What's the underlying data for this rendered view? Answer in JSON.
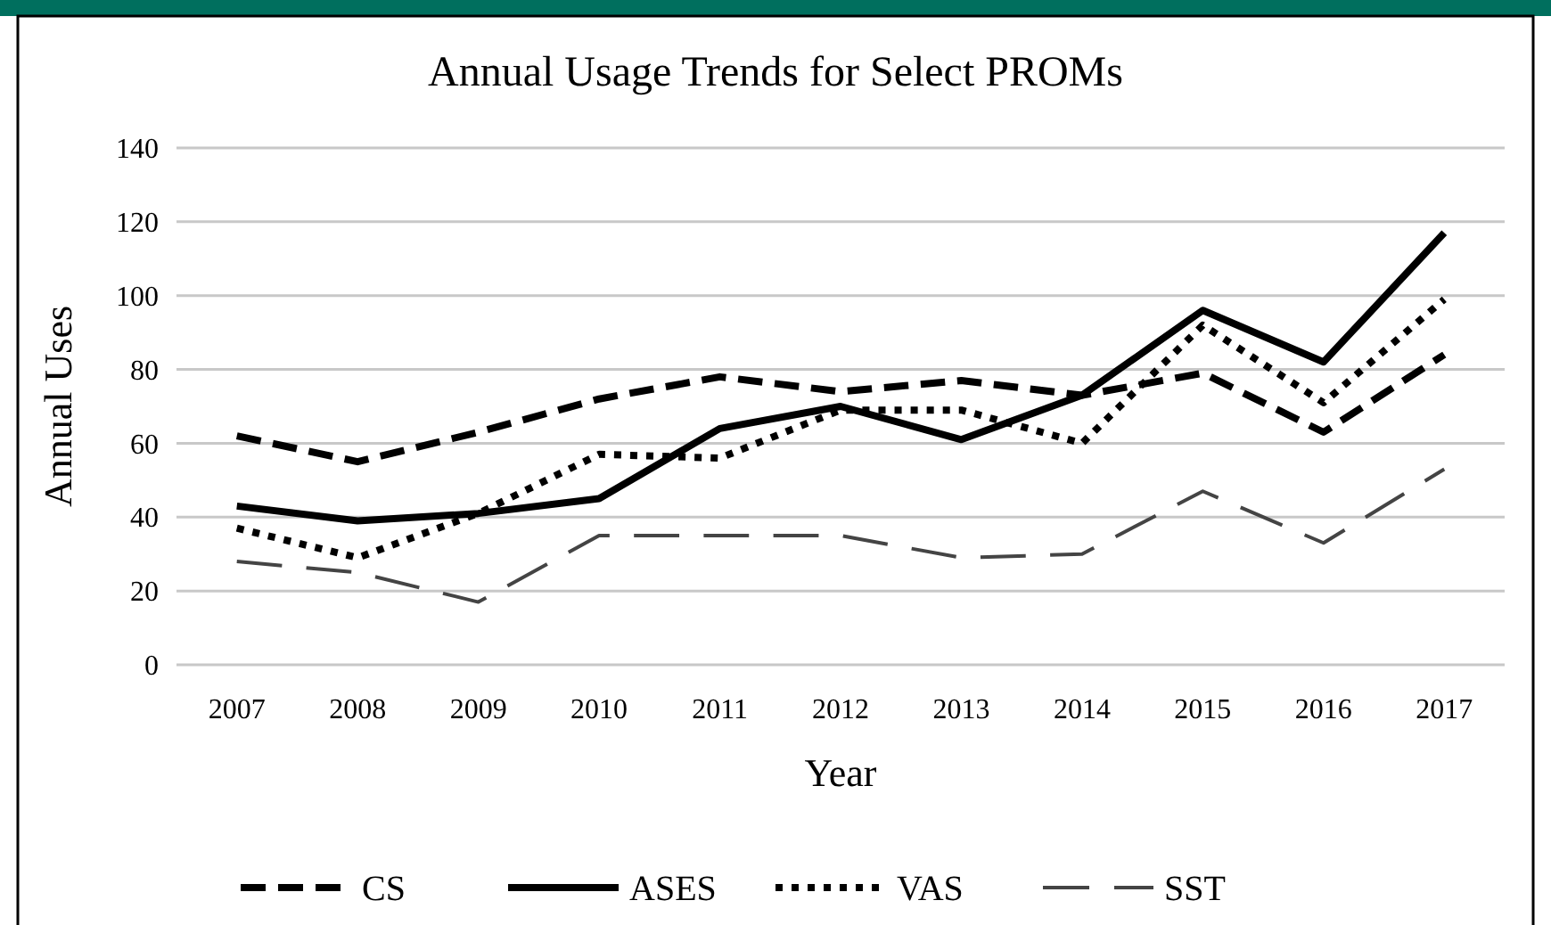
{
  "chart_data": {
    "type": "line",
    "title": "Annual Usage Trends for Select PROMs",
    "xlabel": "Year",
    "ylabel": "Annual Uses",
    "categories": [
      "2007",
      "2008",
      "2009",
      "2010",
      "2011",
      "2012",
      "2013",
      "2014",
      "2015",
      "2016",
      "2017"
    ],
    "series": [
      {
        "name": "CS",
        "color": "#000000",
        "line_style": "dashed",
        "values": [
          62,
          55,
          63,
          72,
          78,
          74,
          77,
          73,
          79,
          63,
          84
        ]
      },
      {
        "name": "ASES",
        "color": "#000000",
        "line_style": "solid",
        "values": [
          43,
          39,
          41,
          45,
          64,
          70,
          61,
          73,
          96,
          82,
          117
        ]
      },
      {
        "name": "VAS",
        "color": "#000000",
        "line_style": "dotted",
        "values": [
          37,
          29,
          41,
          57,
          56,
          69,
          69,
          60,
          92,
          71,
          99
        ]
      },
      {
        "name": "SST",
        "color": "#444444",
        "line_style": "dashed",
        "values": [
          28,
          25,
          17,
          35,
          35,
          35,
          29,
          30,
          47,
          33,
          53
        ]
      }
    ],
    "ylim": [
      0,
      140
    ],
    "yticks": [
      0,
      20,
      40,
      60,
      80,
      100,
      120,
      140
    ],
    "grid": "y",
    "legend": "bottom",
    "marker": "none"
  }
}
